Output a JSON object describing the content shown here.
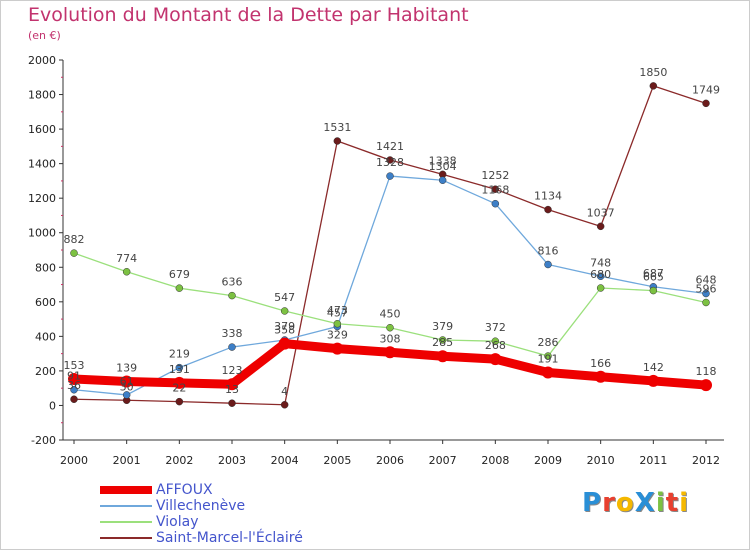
{
  "title": "Evolution du Montant de la Dette par Habitant",
  "subtitle": "(en €)",
  "logo": {
    "text": "ProXiti",
    "letters": [
      {
        "ch": "P",
        "color": "#2a8fd6"
      },
      {
        "ch": "r",
        "color": "#e8402f"
      },
      {
        "ch": "o",
        "color": "#f5b800"
      },
      {
        "ch": "X",
        "color": "#2a8fd6"
      },
      {
        "ch": "i",
        "color": "#7cc142"
      },
      {
        "ch": "t",
        "color": "#e8402f"
      },
      {
        "ch": "i",
        "color": "#f5b800"
      }
    ]
  },
  "chart_data": {
    "type": "line",
    "title": "Evolution du Montant de la Dette par Habitant",
    "ylabel": "(en €)",
    "xlabel": "",
    "ylim": [
      -200,
      2000
    ],
    "yticks": [
      -200,
      0,
      200,
      400,
      600,
      800,
      1000,
      1200,
      1400,
      1600,
      1800,
      2000
    ],
    "grid": false,
    "legend": "bottom-left",
    "x": [
      "2000",
      "2001",
      "2002",
      "2003",
      "2004",
      "2005",
      "2006",
      "2007",
      "2008",
      "2009",
      "2010",
      "2011",
      "2012"
    ],
    "series": [
      {
        "name": "AFFOUX",
        "color": "#ee0000",
        "marker": "#ee0000",
        "width": 9,
        "radius": 6,
        "values": [
          153,
          139,
          131,
          123,
          358,
          329,
          308,
          285,
          268,
          191,
          166,
          142,
          118
        ]
      },
      {
        "name": "Villechenève",
        "color": "#6fa8dc",
        "marker": "#3d7fc7",
        "width": 1.3,
        "radius": 3.5,
        "values": [
          91,
          61,
          219,
          338,
          379,
          457,
          1328,
          1304,
          1168,
          816,
          748,
          687,
          648
        ]
      },
      {
        "name": "Violay",
        "color": "#9be07c",
        "marker": "#7cc142",
        "width": 1.3,
        "radius": 3.5,
        "values": [
          882,
          774,
          679,
          636,
          547,
          473,
          450,
          379,
          372,
          286,
          680,
          665,
          596
        ]
      },
      {
        "name": "Saint-Marcel-l'Éclairé",
        "color": "#8b2a2a",
        "marker": "#6b1b1b",
        "width": 1.3,
        "radius": 3.5,
        "values": [
          36,
          30,
          22,
          13,
          4,
          1531,
          1421,
          1338,
          1252,
          1134,
          1037,
          1850,
          1749
        ]
      }
    ]
  }
}
